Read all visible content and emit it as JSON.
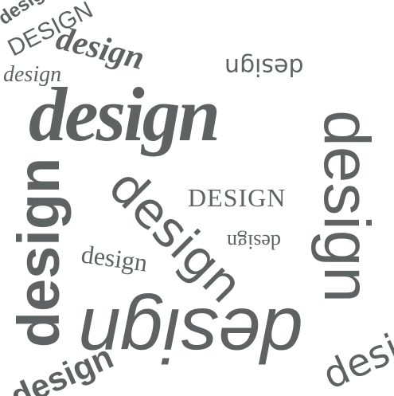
{
  "image": {
    "background_color": "#ffffff",
    "text_color": "#5f6263"
  },
  "words": [
    {
      "text": "design",
      "style": "bold sans, rotated, top-left corner"
    },
    {
      "text": "DESIGN",
      "style": "sans caps, rotated"
    },
    {
      "text": "design",
      "style": "bold italic serif, slanted"
    },
    {
      "text": "design",
      "style": "italic serif, small"
    },
    {
      "text": "design",
      "style": "upside down sans"
    },
    {
      "text": "design",
      "style": "large bold italic serif"
    },
    {
      "text": "design",
      "style": "large sans, rotated 90 degrees"
    },
    {
      "text": "design",
      "style": "bold sans, rotated -90 degrees"
    },
    {
      "text": "design",
      "style": "light sans, diagonal"
    },
    {
      "text": "DESIGN",
      "style": "serif caps"
    },
    {
      "text": "design",
      "style": "upside down serif, small"
    },
    {
      "text": "design",
      "style": "serif, slightly rotated"
    },
    {
      "text": "design",
      "style": "large italic sans, upside down"
    },
    {
      "text": "design",
      "style": "bold sans, rotated, bottom-left"
    },
    {
      "text": "design",
      "style": "sans, rotated, bottom-right corner"
    }
  ]
}
